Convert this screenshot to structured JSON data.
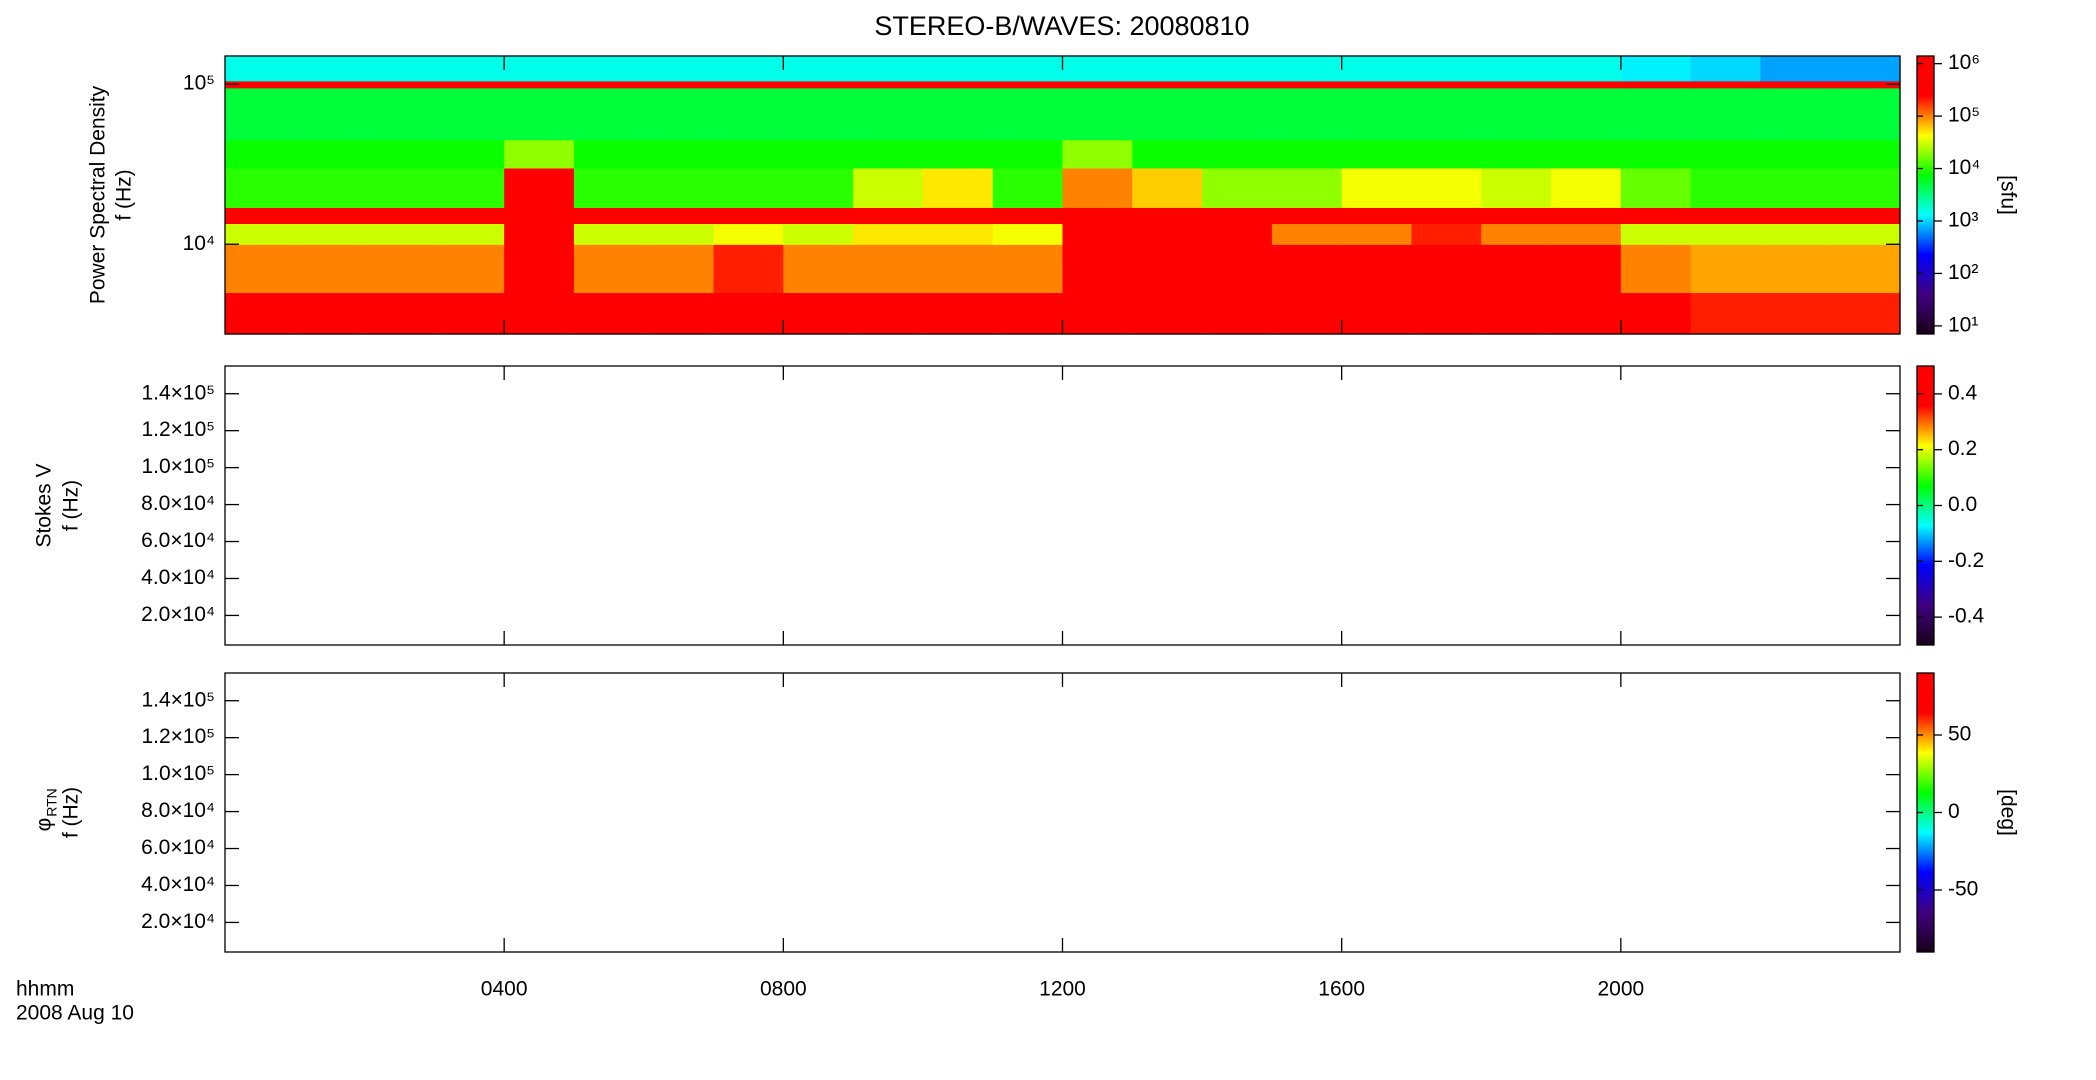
{
  "chart_data": [
    {
      "type": "heatmap",
      "title": "STEREO-B/WAVES: 20080810",
      "ylabel": [
        "Power Spectral Density",
        "f (Hz)"
      ],
      "ylog": true,
      "ylim": [
        2750,
        150000
      ],
      "yticks": [
        {
          "value": 10000,
          "label": "10⁴"
        },
        {
          "value": 100000,
          "label": "10⁵"
        }
      ],
      "xlim": [
        0,
        24
      ],
      "xticks": [
        {
          "value": 4,
          "label": "0400"
        },
        {
          "value": 8,
          "label": "0800"
        },
        {
          "value": 12,
          "label": "1200"
        },
        {
          "value": 16,
          "label": "1600"
        },
        {
          "value": 20,
          "label": "2000"
        }
      ],
      "xbins": [
        0,
        1,
        2,
        3,
        4,
        5,
        6,
        7,
        8,
        9,
        10,
        11,
        12,
        13,
        14,
        15,
        16,
        17,
        18,
        19,
        20,
        21,
        22,
        23,
        24
      ],
      "ybins": [
        2750,
        5000,
        10000,
        13500,
        17000,
        30000,
        45000,
        95000,
        105000,
        150000
      ],
      "z": [
        [
          300000,
          300000,
          300000,
          300000,
          500000,
          300000,
          300000,
          400000,
          300000,
          300000,
          300000,
          300000,
          1000000,
          1000000,
          1000000,
          1000000,
          1000000,
          1000000,
          1000000,
          1000000,
          300000,
          200000,
          200000,
          200000
        ],
        [
          100000,
          100000,
          100000,
          100000,
          300000,
          100000,
          100000,
          200000,
          100000,
          100000,
          100000,
          100000,
          1000000,
          1000000,
          1000000,
          500000,
          700000,
          700000,
          500000,
          500000,
          100000,
          80000,
          80000,
          80000
        ],
        [
          30000,
          30000,
          30000,
          30000,
          300000,
          30000,
          30000,
          40000,
          30000,
          50000,
          50000,
          40000,
          600000,
          800000,
          400000,
          100000,
          100000,
          200000,
          100000,
          100000,
          30000,
          30000,
          30000,
          30000
        ],
        [
          1000000,
          1000000,
          1000000,
          1000000,
          1000000,
          1000000,
          1000000,
          1000000,
          1000000,
          1000000,
          1000000,
          1000000,
          1000000,
          1000000,
          1000000,
          1000000,
          1000000,
          1000000,
          1000000,
          1000000,
          1000000,
          1000000,
          1000000,
          1000000
        ],
        [
          10000,
          10000,
          10000,
          10000,
          300000,
          10000,
          10000,
          10000,
          10000,
          30000,
          50000,
          10000,
          100000,
          60000,
          20000,
          20000,
          40000,
          40000,
          30000,
          40000,
          15000,
          10000,
          10000,
          10000
        ],
        [
          8000,
          8000,
          8000,
          8000,
          20000,
          8000,
          8000,
          8000,
          8000,
          8000,
          8000,
          8000,
          20000,
          8000,
          8000,
          8000,
          8000,
          8000,
          8000,
          8000,
          8000,
          8000,
          8000,
          8000
        ],
        [
          5000,
          5000,
          5000,
          5000,
          5000,
          5000,
          5000,
          5000,
          5000,
          5000,
          5000,
          5000,
          5000,
          5000,
          5000,
          5000,
          5000,
          5000,
          5000,
          5000,
          5000,
          5000,
          5000,
          5000
        ],
        [
          500000,
          500000,
          500000,
          500000,
          500000,
          500000,
          500000,
          500000,
          500000,
          500000,
          500000,
          500000,
          500000,
          500000,
          500000,
          500000,
          500000,
          500000,
          500000,
          500000,
          500000,
          500000,
          500000,
          500000
        ],
        [
          1500,
          1500,
          1500,
          1500,
          1500,
          1500,
          1500,
          1500,
          1500,
          1500,
          1500,
          1500,
          1500,
          1500,
          1500,
          1500,
          1500,
          1500,
          1500,
          1500,
          1200,
          1000,
          700,
          700
        ]
      ],
      "clog": true,
      "clim": [
        7,
        1400000
      ],
      "cticks": [
        {
          "value": 10,
          "label": "10¹"
        },
        {
          "value": 100,
          "label": "10²"
        },
        {
          "value": 1000,
          "label": "10³"
        },
        {
          "value": 10000,
          "label": "10⁴"
        },
        {
          "value": 100000,
          "label": "10⁵"
        },
        {
          "value": 1000000,
          "label": "10⁶"
        }
      ],
      "clabel": "[sfu]",
      "colormap": [
        "#1a001a",
        "#400080",
        "#0000ff",
        "#00ffff",
        "#00ff00",
        "#ffff00",
        "#ff0000",
        "#ff0000"
      ]
    },
    {
      "type": "heatmap",
      "ylabel": [
        "Stokes V",
        "f (Hz)"
      ],
      "ylog": false,
      "ylim": [
        4000,
        155000
      ],
      "yticks": [
        {
          "value": 20000,
          "label": "2.0×10⁴"
        },
        {
          "value": 40000,
          "label": "4.0×10⁴"
        },
        {
          "value": 60000,
          "label": "6.0×10⁴"
        },
        {
          "value": 80000,
          "label": "8.0×10⁴"
        },
        {
          "value": 100000,
          "label": "1.0×10⁵"
        },
        {
          "value": 120000,
          "label": "1.2×10⁵"
        },
        {
          "value": 140000,
          "label": "1.4×10⁵"
        }
      ],
      "xlim": [
        0,
        24
      ],
      "xticks": [
        {
          "value": 4,
          "label": "0400"
        },
        {
          "value": 8,
          "label": "0800"
        },
        {
          "value": 12,
          "label": "1200"
        },
        {
          "value": 16,
          "label": "1600"
        },
        {
          "value": 20,
          "label": "2000"
        }
      ],
      "clog": false,
      "clim": [
        -0.5,
        0.5
      ],
      "cticks": [
        -0.4,
        -0.2,
        {
          "value": 0,
          "label": "0.0"
        },
        0.2,
        0.4
      ],
      "colormap": [
        "#1a001a",
        "#400080",
        "#0000ff",
        "#00ffff",
        "#00ff00",
        "#ffff00",
        "#ff0000",
        "#ff0000"
      ]
    },
    {
      "type": "heatmap",
      "ylabel": [
        "φ",
        "f (Hz)"
      ],
      "ylabel_subscript": "RTN",
      "ylog": false,
      "ylim": [
        4000,
        155000
      ],
      "yticks": [
        {
          "value": 20000,
          "label": "2.0×10⁴"
        },
        {
          "value": 40000,
          "label": "4.0×10⁴"
        },
        {
          "value": 60000,
          "label": "6.0×10⁴"
        },
        {
          "value": 80000,
          "label": "8.0×10⁴"
        },
        {
          "value": 100000,
          "label": "1.0×10⁵"
        },
        {
          "value": 120000,
          "label": "1.2×10⁵"
        },
        {
          "value": 140000,
          "label": "1.4×10⁵"
        }
      ],
      "xlim": [
        0,
        24
      ],
      "xticks": [
        {
          "value": 4,
          "label": "0400"
        },
        {
          "value": 8,
          "label": "0800"
        },
        {
          "value": 12,
          "label": "1200"
        },
        {
          "value": 16,
          "label": "1600"
        },
        {
          "value": 20,
          "label": "2000"
        }
      ],
      "xlabel": [
        "hhmm",
        "2008 Aug 10"
      ],
      "clog": false,
      "clim": [
        -90,
        90
      ],
      "cticks": [
        -50,
        0,
        50
      ],
      "clabel": "[deg]",
      "colormap": [
        "#1a001a",
        "#400080",
        "#0000ff",
        "#00ffff",
        "#00ff00",
        "#ffff00",
        "#ff0000",
        "#ff0000"
      ]
    }
  ]
}
